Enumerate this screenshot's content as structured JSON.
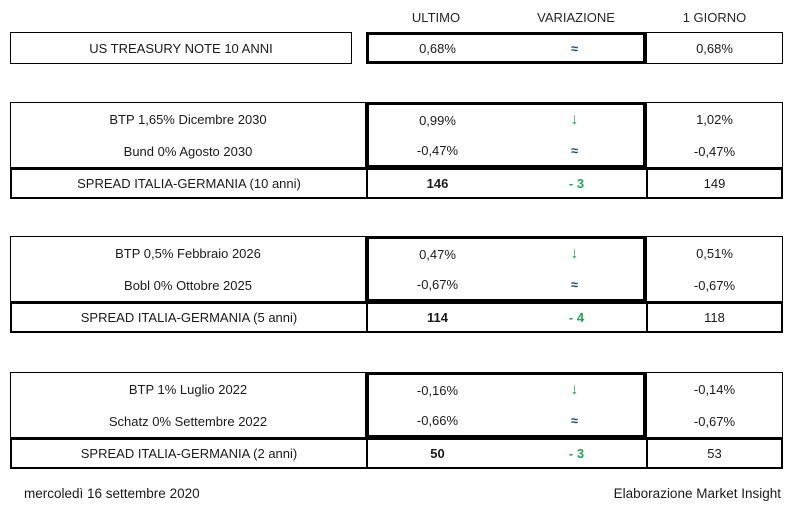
{
  "header": {
    "ultimo": "ULTIMO",
    "variazione": "VARIAZIONE",
    "giorno": "1 GIORNO"
  },
  "treasury": {
    "label": "US TREASURY NOTE 10 ANNI",
    "ultimo": "0,68%",
    "variazione": "≈",
    "giorno": "0,68%"
  },
  "blocks": [
    {
      "bonds": [
        {
          "label": "BTP 1,65% Dicembre 2030",
          "ultimo": "0,99%",
          "variazione": "↓",
          "giorno": "1,02%"
        },
        {
          "label": "Bund 0% Agosto 2030",
          "ultimo": "-0,47%",
          "variazione": "≈",
          "giorno": "-0,47%"
        }
      ],
      "spread": {
        "label": "SPREAD ITALIA-GERMANIA (10 anni)",
        "ultimo": "146",
        "variazione": "- 3",
        "giorno": "149"
      }
    },
    {
      "bonds": [
        {
          "label": "BTP 0,5% Febbraio 2026",
          "ultimo": "0,47%",
          "variazione": "↓",
          "giorno": "0,51%"
        },
        {
          "label": "Bobl 0% Ottobre 2025",
          "ultimo": "-0,67%",
          "variazione": "≈",
          "giorno": "-0,67%"
        }
      ],
      "spread": {
        "label": "SPREAD ITALIA-GERMANIA (5 anni)",
        "ultimo": "114",
        "variazione": "- 4",
        "giorno": "118"
      }
    },
    {
      "bonds": [
        {
          "label": "BTP 1% Luglio 2022",
          "ultimo": "-0,16%",
          "variazione": "↓",
          "giorno": "-0,14%"
        },
        {
          "label": "Schatz 0% Settembre 2022",
          "ultimo": "-0,66%",
          "variazione": "≈",
          "giorno": "-0,67%"
        }
      ],
      "spread": {
        "label": "SPREAD ITALIA-GERMANIA (2 anni)",
        "ultimo": "50",
        "variazione": "- 3",
        "giorno": "53"
      }
    }
  ],
  "footer": {
    "date": "mercoledì 16 settembre 2020",
    "credit": "Elaborazione Market Insight"
  },
  "colors": {
    "positive_green": "#27A35C",
    "approx_navy": "#1F4E79",
    "border_black": "#000000"
  }
}
